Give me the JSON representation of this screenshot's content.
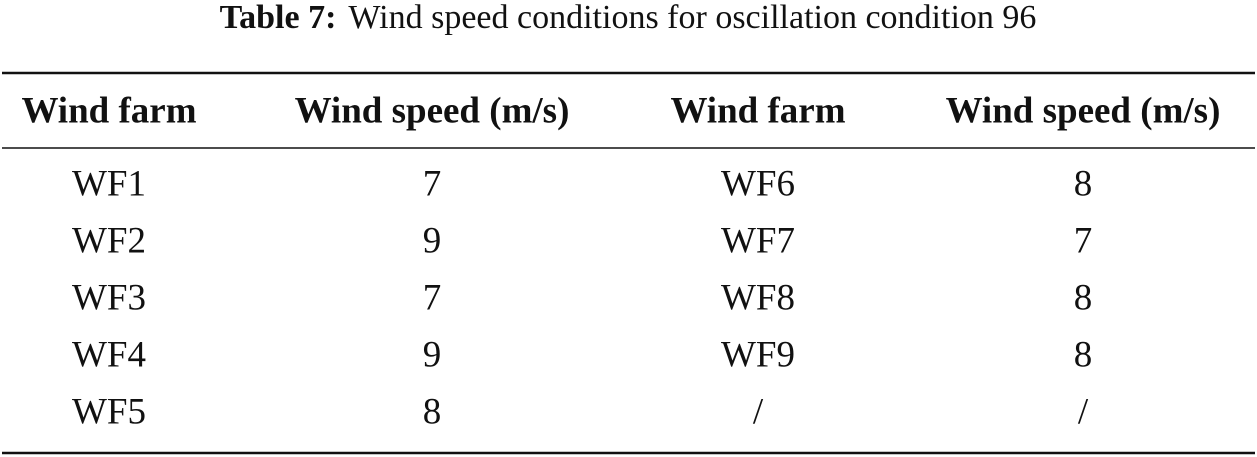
{
  "caption": {
    "label": "Table 7:",
    "text": "Wind speed conditions for oscillation condition 96"
  },
  "table": {
    "headers": [
      "Wind farm",
      "Wind speed (m/s)",
      "Wind farm",
      "Wind speed (m/s)"
    ],
    "rows": [
      [
        "WF1",
        7,
        "WF6",
        8
      ],
      [
        "WF2",
        9,
        "WF7",
        7
      ],
      [
        "WF3",
        7,
        "WF8",
        8
      ],
      [
        "WF4",
        9,
        "WF9",
        8
      ],
      [
        "WF5",
        8,
        "/",
        "/"
      ]
    ]
  }
}
